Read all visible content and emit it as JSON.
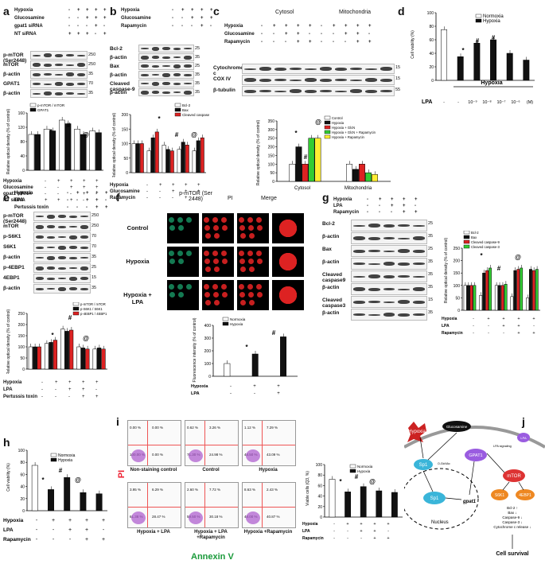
{
  "panels": {
    "a": {
      "label": "a",
      "conditions": [
        {
          "name": "Hypoxia",
          "signs": [
            "-",
            "+",
            "+",
            "+",
            "+"
          ]
        },
        {
          "name": "Glucosamine",
          "signs": [
            "-",
            "-",
            "+",
            "+",
            "+"
          ]
        },
        {
          "name": "gpat1 siRNA",
          "signs": [
            "-",
            "-",
            "-",
            "+",
            "-"
          ]
        },
        {
          "name": "NT siRNA",
          "signs": [
            "+",
            "+",
            "+",
            "-",
            "+"
          ]
        }
      ],
      "blots": [
        "p-mTOR (Ser2448)",
        "mTOR",
        "β-actin",
        "GPAT1",
        "β-actin"
      ],
      "mw": [
        "250",
        "250",
        "35",
        "70",
        "35"
      ],
      "chart_xlabels": [
        "Hypoxia",
        "Glucosamine",
        "gpat1 siRNA",
        "NT siRNA"
      ],
      "legend": [
        "p-mTOR / mTOR",
        "GPAT1"
      ],
      "ylabel": "Relative optical density (% of control)",
      "sig": [
        "*",
        "#",
        "@"
      ],
      "yticks": [
        "0",
        "40",
        "80",
        "120",
        "160"
      ]
    },
    "b": {
      "label": "b",
      "conditions": [
        {
          "name": "Hypoxia",
          "signs": [
            "-",
            "+",
            "+",
            "+",
            "+"
          ]
        },
        {
          "name": "Glucosamine",
          "signs": [
            "-",
            "-",
            "+",
            "+",
            "+"
          ]
        },
        {
          "name": "Rapamycin",
          "signs": [
            "-",
            "-",
            "-",
            "+",
            "-"
          ]
        }
      ],
      "blots": [
        "Bcl-2",
        "β-actin",
        "Bax",
        "β-actin",
        "Cleaved caspase-9",
        "β-actin"
      ],
      "mw": [
        "25",
        "35",
        "25",
        "35",
        "35",
        "35"
      ],
      "legend": [
        "Bcl-2",
        "Bax",
        "Cleaved caspase-9"
      ],
      "chart_xlabels": [
        "Hypoxia",
        "Glucosamine",
        "Rapamycin"
      ],
      "ylabel": "Relative optical density (% of control)",
      "sig": [
        "*",
        "#",
        "@"
      ]
    },
    "c": {
      "label": "c",
      "headers": [
        "Cytosol",
        "Mitochondria"
      ],
      "conditions": [
        {
          "name": "Hypoxia",
          "signs": [
            "-",
            "+",
            "+",
            "+",
            "+",
            "-",
            "+",
            "+",
            "+",
            "+"
          ]
        },
        {
          "name": "Glucosamine",
          "signs": [
            "-",
            "-",
            "+",
            "+",
            "-",
            "-",
            "-",
            "+",
            "+",
            "-"
          ]
        },
        {
          "name": "Rapamycin",
          "signs": [
            "-",
            "-",
            "-",
            "+",
            "+",
            "-",
            "-",
            "-",
            "+",
            "+"
          ]
        }
      ],
      "blots": [
        "Cytochrome c",
        "COX IV",
        "β-tubulin"
      ],
      "mw": [
        "15",
        "15",
        "55"
      ],
      "legend": [
        "Control",
        "Hypoxia",
        "Hypoxia + GlcN",
        "Hypoxia + GlcN + Rapamycin",
        "Hypoxia + Rapamycin"
      ],
      "legend_colors": [
        "#ffffff",
        "#111111",
        "#dd2222",
        "#33cc33",
        "#ffee33"
      ],
      "groups": [
        "Cytosol",
        "Mitochondria"
      ],
      "ylabel": "Relative optical density (% of control)",
      "sig": [
        "*",
        "#",
        "@"
      ]
    },
    "d": {
      "label": "d",
      "legend": [
        "Normoxia",
        "Hypoxia"
      ],
      "ylabel": "Cell viability (%)",
      "xtitle": "Hypoxia",
      "lpa_label": "LPA",
      "lpa_ticks": [
        "-",
        "-",
        "10⁻⁹",
        "10⁻⁸",
        "10⁻⁷",
        "10⁻⁶",
        "(M)"
      ],
      "sig": [
        "*",
        "#",
        "#"
      ]
    },
    "e": {
      "label": "e",
      "conditions": [
        {
          "name": "Hypoxia",
          "signs": [
            "-",
            "+",
            "+",
            "+",
            "+"
          ]
        },
        {
          "name": "LPA",
          "signs": [
            "-",
            "-",
            "+",
            "+",
            "-"
          ]
        },
        {
          "name": "Pertussis toxin",
          "signs": [
            "-",
            "-",
            "-",
            "+",
            "+"
          ]
        }
      ],
      "blots": [
        "p-mTOR (Ser2448)",
        "mTOR",
        "p-S6K1",
        "S6K1",
        "β-actin",
        "p-4EBP1",
        "4EBP1",
        "β-actin"
      ],
      "mw": [
        "250",
        "250",
        "70",
        "70",
        "35",
        "25",
        "15",
        "35"
      ],
      "legend": [
        "p-mTOR / mTOR",
        "p-S6K1 / S6K1",
        "p-4EBP1 / 4EBP1"
      ],
      "chart_xlabels": [
        "Hypoxia",
        "LPA",
        "Pertussis toxin"
      ],
      "ylabel": "Relative optical density (% of control)",
      "sig": [
        "*",
        "#",
        "@"
      ]
    },
    "f": {
      "label": "f",
      "col_headers": [
        "p-mTOR (Ser 2448)",
        "PI",
        "Merge"
      ],
      "rows": [
        "Control",
        "Hypoxia",
        "Hypoxia + LPA"
      ],
      "legend": [
        "Normoxia",
        "Hypoxia"
      ],
      "ylabel": "Fluorescence intensity (% of control)",
      "xrows": [
        {
          "name": "Hypoxia",
          "signs": [
            "-",
            "+",
            "+"
          ]
        },
        {
          "name": "LPA",
          "signs": [
            "-",
            "-",
            "+"
          ]
        }
      ],
      "sig": [
        "*",
        "#"
      ]
    },
    "g": {
      "label": "g",
      "conditions": [
        {
          "name": "Hypoxia",
          "signs": [
            "-",
            "+",
            "+",
            "+",
            "+"
          ]
        },
        {
          "name": "LPA",
          "signs": [
            "-",
            "-",
            "+",
            "+",
            "-"
          ]
        },
        {
          "name": "Rapamycin",
          "signs": [
            "-",
            "-",
            "-",
            "+",
            "+"
          ]
        }
      ],
      "blots": [
        "Bcl-2",
        "β-actin",
        "Bax",
        "β-actin",
        "Cleaved caspase9",
        "β-actin",
        "Cleaved caspase3",
        "β-actin"
      ],
      "mw": [
        "25",
        "35",
        "25",
        "35",
        "35",
        "35",
        "15",
        "35"
      ],
      "legend": [
        "Bcl-2",
        "Bax",
        "Cleaved caspase-9",
        "Cleaved caspase-3"
      ],
      "chart_xlabels": [
        "Hypoxia",
        "LPA",
        "Rapamycin"
      ],
      "ylabel": "Relative optical density (% of control)",
      "sig": [
        "*",
        "#",
        "@"
      ]
    },
    "h": {
      "label": "h",
      "legend": [
        "Normoxia",
        "Hypoxia"
      ],
      "ylabel": "Cell viability (%)",
      "xrows": [
        {
          "name": "Hypoxia",
          "signs": [
            "-",
            "+",
            "+",
            "+",
            "+"
          ]
        },
        {
          "name": "LPA",
          "signs": [
            "-",
            "-",
            "+",
            "+",
            "-"
          ]
        },
        {
          "name": "Rapamycin",
          "signs": [
            "-",
            "-",
            "-",
            "+",
            "+"
          ]
        }
      ],
      "sig": [
        "*",
        "#",
        "@"
      ]
    },
    "i": {
      "label": "i",
      "yaxis": "PI",
      "xaxis": "Annexin V",
      "plots": [
        {
          "quads": [
            "0.00 %",
            "0.00 %",
            "100.00 %",
            "0.00 %"
          ],
          "name": "Non-staining control"
        },
        {
          "quads": [
            "0.62 %",
            "3.26 %",
            "71.30 %",
            "24.98 %"
          ],
          "name": "Control"
        },
        {
          "quads": [
            "1.12 %",
            "7.29 %",
            "48.50 %",
            "43.09 %"
          ],
          "name": "Hypoxia"
        },
        {
          "quads": [
            "3.95 %",
            "6.29 %",
            "61.38 %",
            "28.47 %"
          ],
          "name": "Hypoxia + LPA"
        },
        {
          "quads": [
            "2.60 %",
            "7.72 %",
            "59.50 %",
            "30.18 %"
          ],
          "name": "Hypoxia + LPA +Rapamycin"
        },
        {
          "quads": [
            "8.63 %",
            "2.43 %",
            "48.00 %",
            "40.87 %"
          ],
          "name": "Hypoxia +Rapamycin"
        }
      ],
      "quadnames": [
        "Q1",
        "Q2",
        "Q3",
        "Q4"
      ],
      "chart_ylabel": "Viable cells (Q3, %)",
      "legend": [
        "Normoxia",
        "Hypoxia"
      ],
      "xrows": [
        {
          "name": "Hypoxia",
          "signs": [
            "-",
            "+",
            "+",
            "+",
            "+"
          ]
        },
        {
          "name": "LPA",
          "signs": [
            "-",
            "-",
            "+",
            "+",
            "-"
          ]
        },
        {
          "name": "Rapamycin",
          "signs": [
            "-",
            "-",
            "-",
            "+",
            "+"
          ]
        }
      ],
      "sig": [
        "*",
        "#",
        "@"
      ]
    },
    "j": {
      "label": "j",
      "nodes": {
        "hypoxia": "Hypoxia",
        "glucosamine": "Glucosamine",
        "sp1_cyto": "Sp1",
        "sp1_nuc": "Sp1",
        "gpat1": "GPAT1",
        "gpat1_gene": "gpat1",
        "mtor": "mTOR",
        "s6k1": "S6K1",
        "ebp1": "4EBP1",
        "nucleus": "Nucleus",
        "lpa_signaling": "LPA signaling",
        "outcomes": "Bcl-2 ↑\nBax ↓\nCaspase-9 ↓\nCaspase-3 ↓\nCytochrome c release ↓",
        "survival": "Cell survival",
        "o_glcnac": "O-GlcNAc",
        "lpa": "LPA"
      }
    }
  },
  "chart_data": [
    {
      "id": "a-chart",
      "type": "bar",
      "categories": [
        "1",
        "2",
        "3",
        "4",
        "5"
      ],
      "series": [
        {
          "name": "p-mTOR / mTOR",
          "values": [
            100,
            115,
            140,
            115,
            110
          ]
        },
        {
          "name": "GPAT1",
          "values": [
            100,
            110,
            130,
            100,
            105
          ]
        }
      ],
      "ylim": [
        0,
        160
      ]
    },
    {
      "id": "b-chart",
      "type": "bar",
      "categories": [
        "1",
        "2",
        "3",
        "4",
        "5"
      ],
      "series": [
        {
          "name": "Bcl-2",
          "values": [
            100,
            75,
            95,
            80,
            75
          ]
        },
        {
          "name": "Bax",
          "values": [
            100,
            120,
            80,
            105,
            110
          ]
        },
        {
          "name": "Cleaved caspase-9",
          "values": [
            100,
            140,
            75,
            95,
            120
          ]
        }
      ],
      "ylim": [
        0,
        200
      ]
    },
    {
      "id": "c-chart",
      "type": "bar",
      "categories": [
        "Cytosol",
        "Mitochondria"
      ],
      "series": [
        {
          "name": "Control",
          "values": [
            100,
            100
          ]
        },
        {
          "name": "Hypoxia",
          "values": [
            200,
            70
          ]
        },
        {
          "name": "Hypoxia + GlcN",
          "values": [
            100,
            100
          ]
        },
        {
          "name": "Hypoxia + GlcN + Rapamycin",
          "values": [
            250,
            50
          ]
        },
        {
          "name": "Hypoxia + Rapamycin",
          "values": [
            250,
            40
          ]
        }
      ],
      "ylim": [
        0,
        350
      ]
    },
    {
      "id": "d-chart",
      "type": "bar",
      "categories": [
        "1",
        "2",
        "3",
        "4",
        "5",
        "6"
      ],
      "series": [
        {
          "name": "Normoxia",
          "values": [
            75,
            null,
            null,
            null,
            null,
            null
          ]
        },
        {
          "name": "Hypoxia",
          "values": [
            null,
            35,
            55,
            60,
            40,
            30
          ]
        }
      ],
      "ylim": [
        0,
        100
      ]
    },
    {
      "id": "e-chart",
      "type": "bar",
      "categories": [
        "1",
        "2",
        "3",
        "4",
        "5"
      ],
      "series": [
        {
          "name": "p-mTOR / mTOR",
          "values": [
            100,
            115,
            180,
            100,
            90
          ]
        },
        {
          "name": "p-S6K1 / S6K1",
          "values": [
            100,
            120,
            170,
            95,
            95
          ]
        },
        {
          "name": "p-4EBP1 / 4EBP1",
          "values": [
            100,
            130,
            175,
            90,
            90
          ]
        }
      ],
      "ylim": [
        0,
        250
      ]
    },
    {
      "id": "f-chart",
      "type": "bar",
      "categories": [
        "1",
        "2",
        "3"
      ],
      "series": [
        {
          "name": "Normoxia",
          "values": [
            100,
            null,
            null
          ]
        },
        {
          "name": "Hypoxia",
          "values": [
            null,
            175,
            310
          ]
        }
      ],
      "ylim": [
        0,
        400
      ]
    },
    {
      "id": "g-chart",
      "type": "bar",
      "categories": [
        "1",
        "2",
        "3",
        "4",
        "5"
      ],
      "series": [
        {
          "name": "Bcl-2",
          "values": [
            100,
            60,
            100,
            55,
            50
          ]
        },
        {
          "name": "Bax",
          "values": [
            100,
            150,
            100,
            160,
            165
          ]
        },
        {
          "name": "Cleaved caspase-9",
          "values": [
            100,
            160,
            100,
            165,
            160
          ]
        },
        {
          "name": "Cleaved caspase-3",
          "values": [
            100,
            170,
            105,
            170,
            165
          ]
        }
      ],
      "ylim": [
        0,
        250
      ]
    },
    {
      "id": "h-chart",
      "type": "bar",
      "categories": [
        "1",
        "2",
        "3",
        "4",
        "5"
      ],
      "series": [
        {
          "name": "Normoxia",
          "values": [
            75,
            null,
            null,
            null,
            null
          ]
        },
        {
          "name": "Hypoxia",
          "values": [
            null,
            35,
            55,
            30,
            28
          ]
        }
      ],
      "ylim": [
        0,
        100
      ]
    },
    {
      "id": "i-chart",
      "type": "bar",
      "categories": [
        "1",
        "2",
        "3",
        "4",
        "5"
      ],
      "series": [
        {
          "name": "Normoxia",
          "values": [
            72,
            null,
            null,
            null,
            null
          ]
        },
        {
          "name": "Hypoxia",
          "values": [
            null,
            48,
            58,
            50,
            47
          ]
        }
      ],
      "ylim": [
        0,
        100
      ]
    }
  ]
}
